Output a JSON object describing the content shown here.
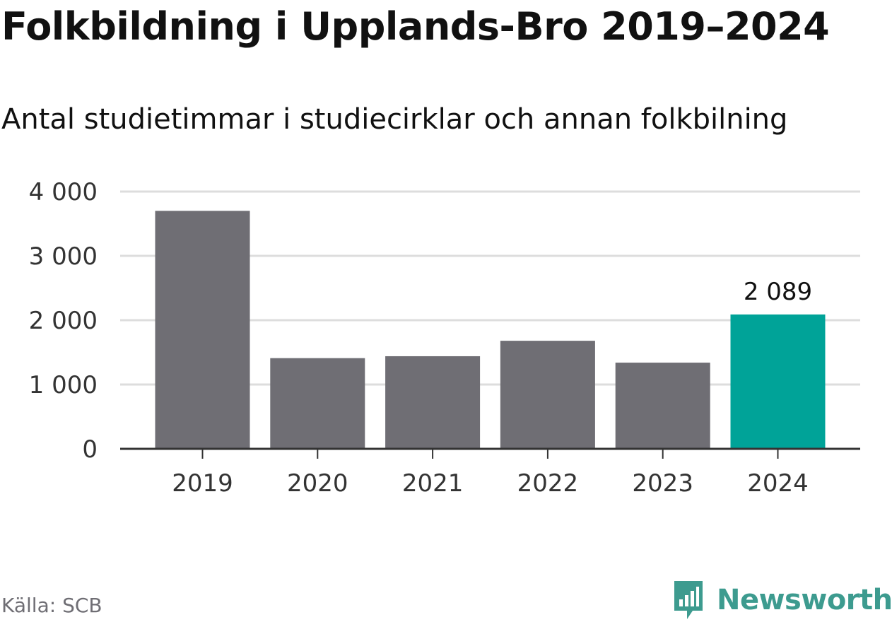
{
  "header": {
    "title": "Folkbildning i Upplands-Bro 2019–2024",
    "subtitle": "Antal studietimmar i studiecirklar och annan folkbilning"
  },
  "footer": {
    "source": "Källa: SCB",
    "brand": "Newsworthy",
    "brand_icon": "bar-chart-speech-bubble-icon",
    "brand_color": "#3d9b8f"
  },
  "chart_data": {
    "type": "bar",
    "title": "Folkbildning i Upplands-Bro 2019–2024",
    "subtitle": "Antal studietimmar i studiecirklar och annan folkbilning",
    "xlabel": "",
    "ylabel": "",
    "categories": [
      "2019",
      "2020",
      "2021",
      "2022",
      "2023",
      "2024"
    ],
    "values": [
      3700,
      1410,
      1440,
      1680,
      1340,
      2089
    ],
    "ylim": [
      0,
      4000
    ],
    "yticks": [
      0,
      1000,
      2000,
      3000,
      4000
    ],
    "ytick_labels": [
      "0",
      "1 000",
      "2 000",
      "3 000",
      "4 000"
    ],
    "highlight_index": 5,
    "data_labels": [
      {
        "index": 5,
        "text": "2 089"
      }
    ],
    "grid": true,
    "legend": "none",
    "colors": {
      "bar": "#6f6e74",
      "highlight": "#00a398",
      "grid": "#dddddd",
      "axis": "#333333",
      "tick_text": "#333333"
    }
  }
}
